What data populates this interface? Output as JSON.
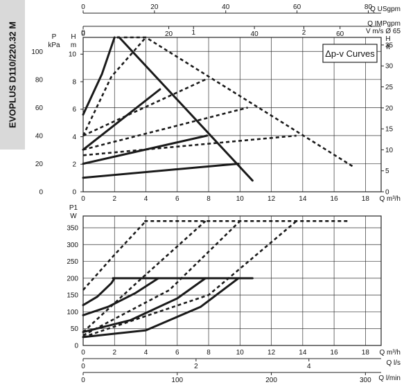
{
  "side_title": "EVOPLUS D110/220.32 M",
  "chart_data": [
    {
      "type": "line",
      "title": "Δp-v Curves",
      "x": {
        "label": "Q m³/h",
        "range": [
          0,
          19
        ],
        "ticks": [
          0,
          2,
          4,
          6,
          8,
          10,
          12,
          14,
          16,
          18
        ]
      },
      "y_left_kpa": {
        "label": "P kPa",
        "range": [
          0,
          110
        ],
        "ticks": [
          0,
          20,
          40,
          60,
          80,
          100
        ]
      },
      "y_left_m": {
        "label": "H m",
        "range": [
          0,
          11.22
        ],
        "ticks": [
          0,
          2,
          4,
          6,
          8,
          10
        ]
      },
      "y_right_ft": {
        "label": "H ft",
        "range": [
          0,
          36.8
        ],
        "ticks": [
          0,
          5,
          10,
          15,
          20,
          25,
          30,
          35
        ]
      },
      "top_axes": [
        {
          "label": "Q USgpm",
          "ticks": [
            0,
            20,
            40,
            60,
            80
          ]
        },
        {
          "label": "Q IMPgpm",
          "ticks": [
            0,
            20,
            40,
            60
          ]
        },
        {
          "label": "V m/s Ø 65",
          "ticks": [
            0,
            1,
            2
          ]
        }
      ],
      "series": [
        {
          "style": "solid",
          "x": [
            2.2,
            2.3,
            10.8
          ],
          "y": [
            110,
            110,
            8
          ]
        },
        {
          "style": "solid",
          "x": [
            0,
            1.2,
            2.0
          ],
          "y": [
            55,
            84,
            110
          ]
        },
        {
          "style": "solid",
          "x": [
            0,
            4.9
          ],
          "y": [
            30,
            73
          ]
        },
        {
          "style": "solid",
          "x": [
            0,
            7.9
          ],
          "y": [
            20,
            40
          ]
        },
        {
          "style": "solid",
          "x": [
            0,
            9.9
          ],
          "y": [
            10,
            20
          ]
        },
        {
          "style": "dashed",
          "x": [
            2.6,
            4.0,
            17.2
          ],
          "y": [
            110,
            110,
            18
          ]
        },
        {
          "style": "dashed",
          "x": [
            0,
            1.8,
            4.0
          ],
          "y": [
            40,
            82,
            110
          ]
        },
        {
          "style": "dashed",
          "x": [
            0,
            7.8
          ],
          "y": [
            40,
            80
          ]
        },
        {
          "style": "dashed",
          "x": [
            0,
            10.5
          ],
          "y": [
            30,
            60
          ]
        },
        {
          "style": "dashed",
          "x": [
            0,
            13.6
          ],
          "y": [
            26,
            40
          ]
        }
      ]
    },
    {
      "type": "line",
      "x": {
        "label": "Q m³/h",
        "range": [
          0,
          19
        ],
        "ticks": [
          0,
          2,
          4,
          6,
          8,
          10,
          12,
          14,
          16,
          18
        ]
      },
      "y": {
        "label": "P1 W",
        "range": [
          0,
          385
        ],
        "ticks": [
          0,
          50,
          100,
          150,
          200,
          250,
          300,
          350
        ]
      },
      "bottom_axes": [
        {
          "label": "Q l/s",
          "ticks": [
            0,
            2,
            4
          ]
        },
        {
          "label": "Q l/min",
          "ticks": [
            0,
            100,
            200,
            300
          ]
        }
      ],
      "series": [
        {
          "style": "solid",
          "x": [
            1.9,
            10.8
          ],
          "y": [
            200,
            200
          ]
        },
        {
          "style": "solid",
          "x": [
            0,
            0.9,
            1.8,
            2.0
          ],
          "y": [
            120,
            145,
            185,
            200
          ]
        },
        {
          "style": "solid",
          "x": [
            0,
            1.6,
            3.3,
            4.8
          ],
          "y": [
            90,
            115,
            155,
            200
          ]
        },
        {
          "style": "solid",
          "x": [
            0,
            3.0,
            6.0,
            7.8
          ],
          "y": [
            40,
            75,
            140,
            200
          ]
        },
        {
          "style": "solid",
          "x": [
            0,
            4.0,
            7.5,
            9.9
          ],
          "y": [
            25,
            45,
            115,
            200
          ]
        },
        {
          "style": "dashed",
          "x": [
            3.9,
            17.0
          ],
          "y": [
            370,
            370
          ]
        },
        {
          "style": "dashed",
          "x": [
            0,
            2.0,
            4.0
          ],
          "y": [
            165,
            270,
            370
          ]
        },
        {
          "style": "dashed",
          "x": [
            0,
            3.5,
            7.8
          ],
          "y": [
            40,
            190,
            370
          ]
        },
        {
          "style": "dashed",
          "x": [
            0,
            5.5,
            10.0
          ],
          "y": [
            30,
            165,
            370
          ]
        },
        {
          "style": "dashed",
          "x": [
            0,
            8.0,
            13.6
          ],
          "y": [
            25,
            150,
            370
          ]
        }
      ]
    }
  ]
}
